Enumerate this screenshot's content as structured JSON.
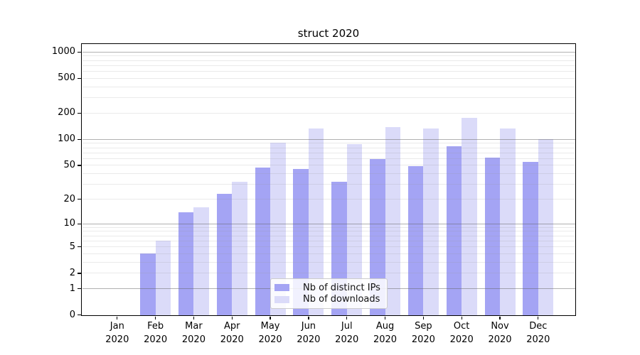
{
  "chart_data": {
    "type": "bar",
    "title": "struct 2020",
    "months": [
      "Jan",
      "Feb",
      "Mar",
      "Apr",
      "May",
      "Jun",
      "Jul",
      "Aug",
      "Sep",
      "Oct",
      "Nov",
      "Dec"
    ],
    "year_label": "2020",
    "categories": [
      "Jan 2020",
      "Feb 2020",
      "Mar 2020",
      "Apr 2020",
      "May 2020",
      "Jun 2020",
      "Jul 2020",
      "Aug 2020",
      "Sep 2020",
      "Oct 2020",
      "Nov 2020",
      "Dec 2020"
    ],
    "series": [
      {
        "name": "Nb of distinct IPs",
        "color": "#a4a4f4",
        "values": [
          0,
          4,
          14,
          23,
          47,
          45,
          32,
          59,
          49,
          83,
          61,
          55
        ]
      },
      {
        "name": "Nb of downloads",
        "color": "#dbdbf9",
        "values": [
          0,
          6,
          16,
          32,
          92,
          133,
          88,
          139,
          133,
          175,
          133,
          100
        ]
      }
    ],
    "y_axis": {
      "scale": "log1p",
      "tick_values": [
        0,
        1,
        2,
        5,
        10,
        20,
        50,
        100,
        200,
        500,
        1000
      ],
      "major_grid_values": [
        1,
        10,
        100,
        1000
      ],
      "ylim": [
        0,
        1280
      ]
    },
    "xlabel": "",
    "ylabel": "",
    "grid": true,
    "legend_position": "lower center"
  }
}
